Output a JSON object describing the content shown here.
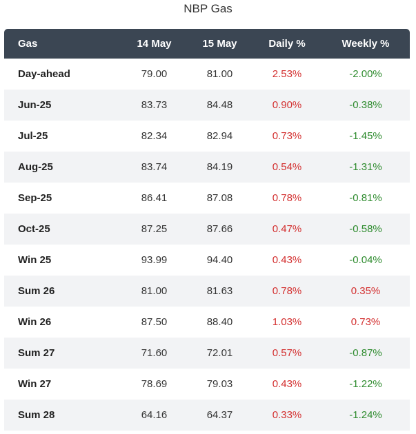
{
  "title": "NBP Gas",
  "colors": {
    "header_bg": "#3b4653",
    "up": "#d32f2f",
    "down": "#2e8b2e",
    "stripe": "#f2f3f5"
  },
  "columns": [
    "Gas",
    "14 May",
    "15 May",
    "Daily %",
    "Weekly %"
  ],
  "rows": [
    {
      "gas": "Day-ahead",
      "d14": "79.00",
      "d15": "81.00",
      "daily": "2.53%",
      "weekly": "-2.00%"
    },
    {
      "gas": "Jun-25",
      "d14": "83.73",
      "d15": "84.48",
      "daily": "0.90%",
      "weekly": "-0.38%"
    },
    {
      "gas": "Jul-25",
      "d14": "82.34",
      "d15": "82.94",
      "daily": "0.73%",
      "weekly": "-1.45%"
    },
    {
      "gas": "Aug-25",
      "d14": "83.74",
      "d15": "84.19",
      "daily": "0.54%",
      "weekly": "-1.31%"
    },
    {
      "gas": "Sep-25",
      "d14": "86.41",
      "d15": "87.08",
      "daily": "0.78%",
      "weekly": "-0.81%"
    },
    {
      "gas": "Oct-25",
      "d14": "87.25",
      "d15": "87.66",
      "daily": "0.47%",
      "weekly": "-0.58%"
    },
    {
      "gas": "Win 25",
      "d14": "93.99",
      "d15": "94.40",
      "daily": "0.43%",
      "weekly": "-0.04%"
    },
    {
      "gas": "Sum 26",
      "d14": "81.00",
      "d15": "81.63",
      "daily": "0.78%",
      "weekly": "0.35%"
    },
    {
      "gas": "Win 26",
      "d14": "87.50",
      "d15": "88.40",
      "daily": "1.03%",
      "weekly": "0.73%"
    },
    {
      "gas": "Sum 27",
      "d14": "71.60",
      "d15": "72.01",
      "daily": "0.57%",
      "weekly": "-0.87%"
    },
    {
      "gas": "Win 27",
      "d14": "78.69",
      "d15": "79.03",
      "daily": "0.43%",
      "weekly": "-1.22%"
    },
    {
      "gas": "Sum 28",
      "d14": "64.16",
      "d15": "64.37",
      "daily": "0.33%",
      "weekly": "-1.24%"
    }
  ]
}
